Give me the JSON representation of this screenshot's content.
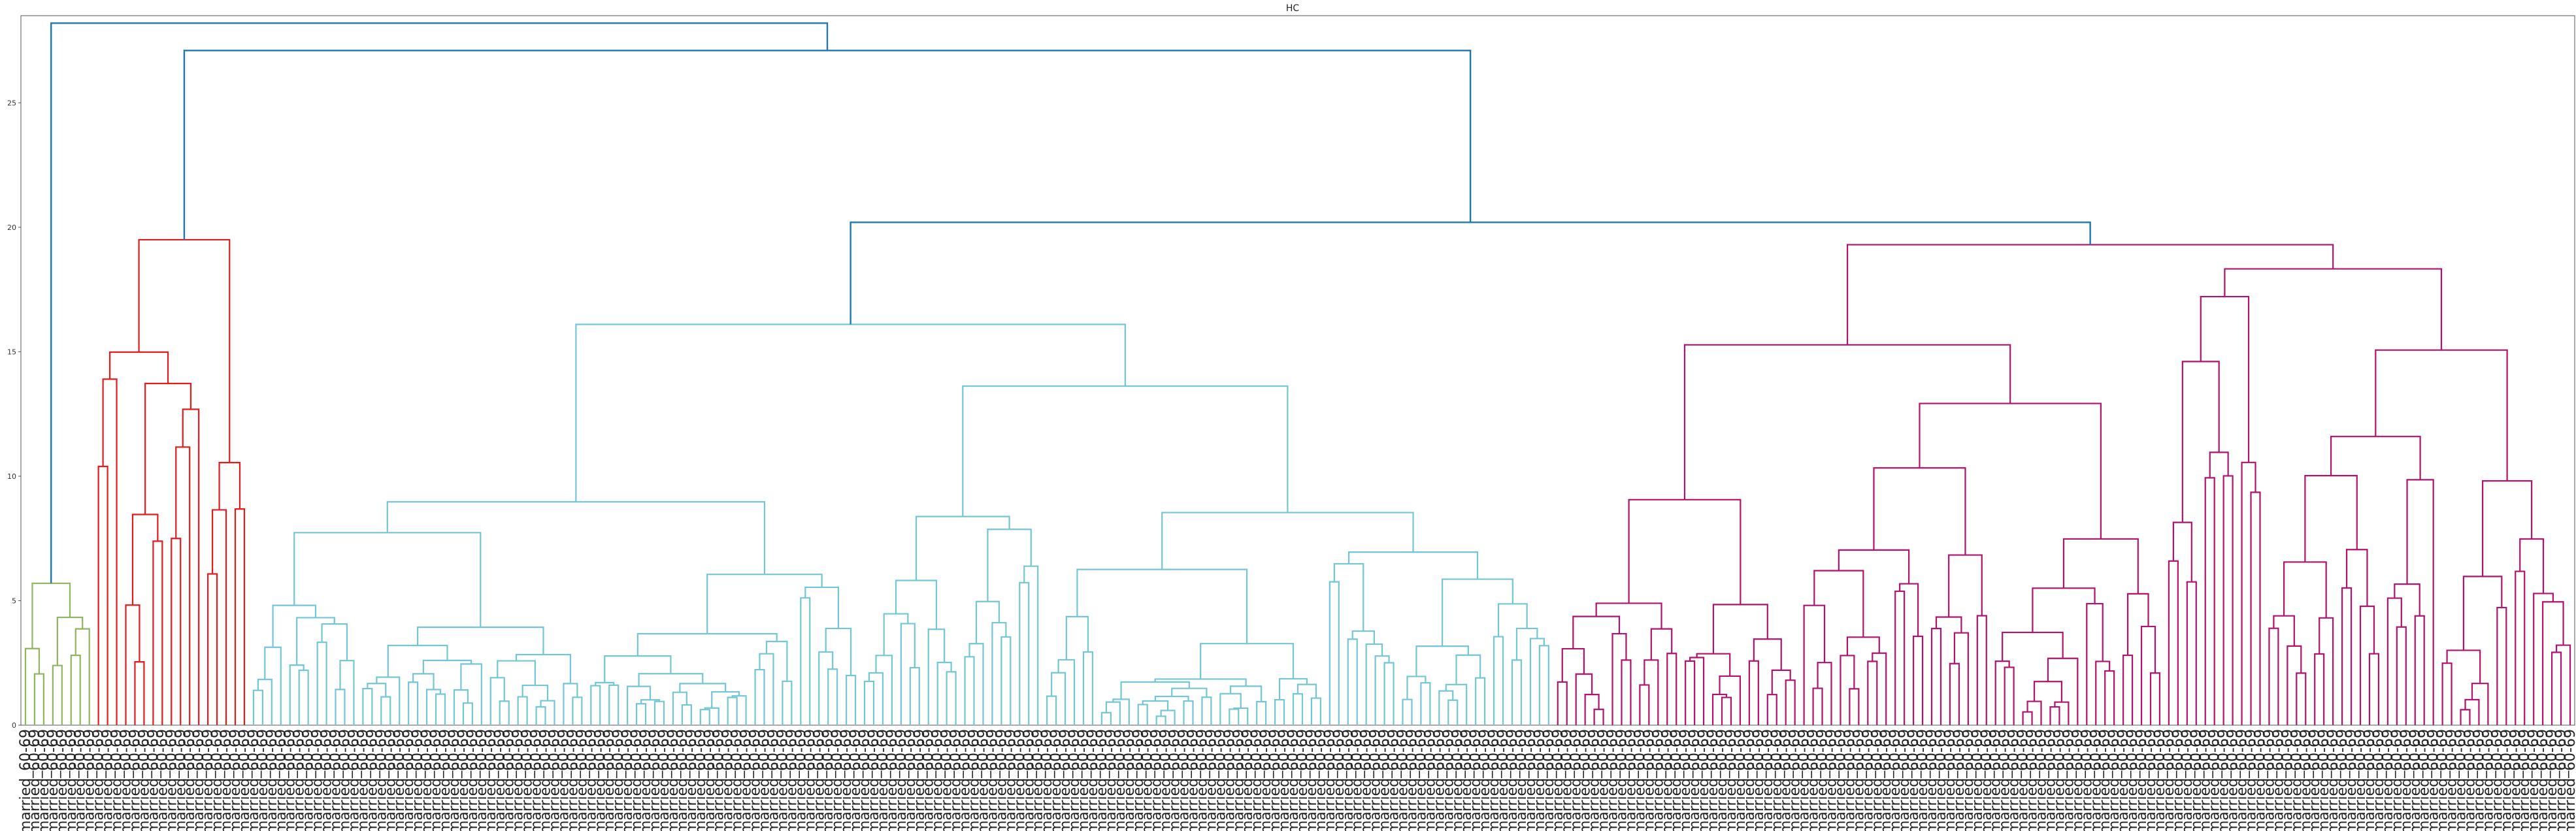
{
  "chart_data": {
    "type": "dendrogram",
    "title": "HC",
    "xlabel": "",
    "ylabel": "",
    "ylim": [
      0,
      28.5
    ],
    "yticks": [
      0,
      5,
      10,
      15,
      20,
      25
    ],
    "grid": false,
    "leaf_label": "married_60-69",
    "leaf_count": 280,
    "clusters": [
      {
        "color": "#8fb55e",
        "leaves": 8,
        "merge_height": 5.7
      },
      {
        "color": "#e41a1c",
        "leaves": 17,
        "merge_height": 19.5
      },
      {
        "color": "#72c6d6",
        "leaves": 143,
        "merge_height": 16.1
      },
      {
        "color": "#b2116e",
        "leaves": 112,
        "merge_height": 19.3
      }
    ],
    "top_links": {
      "color": "#1f77b4",
      "heights": [
        20.2,
        27.1,
        28.2
      ]
    }
  }
}
